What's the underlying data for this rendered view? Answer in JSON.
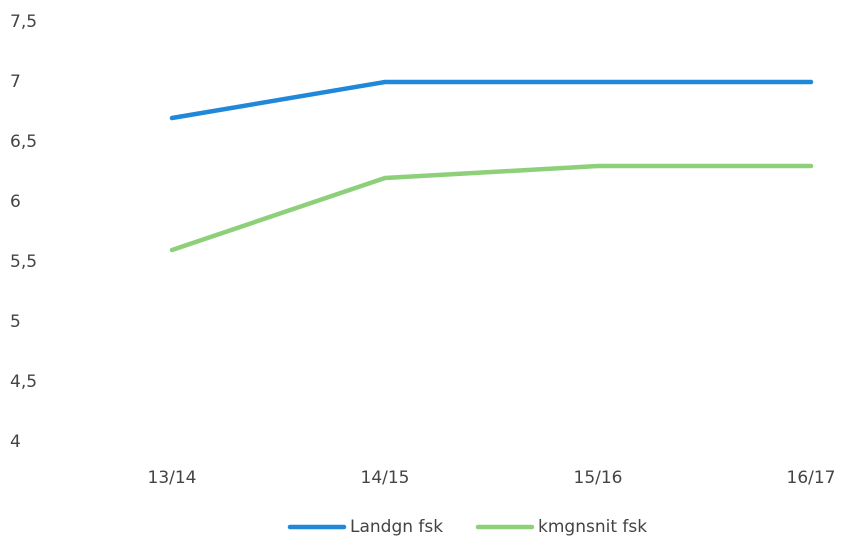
{
  "chart_data": {
    "type": "line",
    "categories": [
      "13/14",
      "14/15",
      "15/16",
      "16/17"
    ],
    "series": [
      {
        "name": "Landgn fsk",
        "color": "#1f88d8",
        "values": [
          6.7,
          7,
          7,
          7
        ]
      },
      {
        "name": "kmgnsnit fsk",
        "color": "#8ed07a",
        "values": [
          5.6,
          6.2,
          6.3,
          6.3
        ]
      }
    ],
    "ylim": [
      4,
      7.5
    ],
    "yticks": [
      4,
      {
        "value": 4.5,
        "label": "4,5"
      },
      5,
      {
        "value": 5.5,
        "label": "5,5"
      },
      6,
      {
        "value": 6.5,
        "label": "6,5"
      },
      7,
      {
        "value": 7.5,
        "label": "7,5"
      }
    ],
    "grid": false,
    "legend": "bottom"
  }
}
